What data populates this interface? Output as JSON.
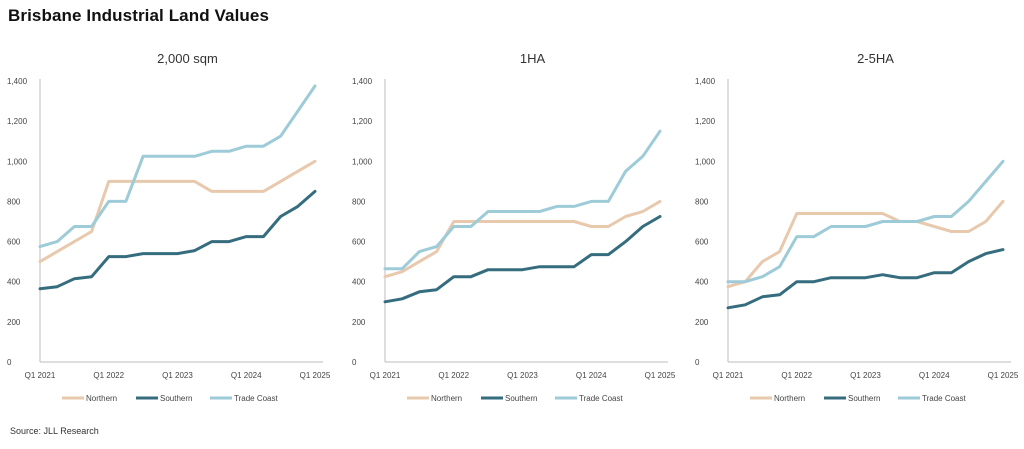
{
  "page": {
    "title": "Brisbane Industrial Land Values",
    "source": "Source: JLL Research"
  },
  "colors": {
    "Northern": "#e8c9ad",
    "Southern": "#356d7e",
    "Trade Coast": "#9dcbd8",
    "axis": "#bdbdbd"
  },
  "chart_data": [
    {
      "type": "line",
      "title": "2,000 sqm",
      "ylim": [
        0,
        1400
      ],
      "yticks": [
        0,
        200,
        400,
        600,
        800,
        1000,
        1200,
        1400
      ],
      "ytick_labels": [
        "0",
        "200",
        "400",
        "600",
        "800",
        "1,000",
        "1,200",
        "1,400"
      ],
      "x": [
        "Q1 2021",
        "Q2 2021",
        "Q3 2021",
        "Q4 2021",
        "Q1 2022",
        "Q2 2022",
        "Q3 2022",
        "Q4 2022",
        "Q1 2023",
        "Q2 2023",
        "Q3 2023",
        "Q4 2023",
        "Q1 2024",
        "Q2 2024",
        "Q3 2024",
        "Q4 2024",
        "Q1 2025"
      ],
      "xtick_labels": [
        "Q1 2021",
        "Q1 2022",
        "Q1 2023",
        "Q1 2024",
        "Q1 2025"
      ],
      "legend": "bottom",
      "series": [
        {
          "name": "Northern",
          "values": [
            500,
            550,
            600,
            650,
            900,
            900,
            900,
            900,
            900,
            900,
            850,
            850,
            850,
            850,
            900,
            950,
            1000
          ]
        },
        {
          "name": "Southern",
          "values": [
            365,
            375,
            415,
            425,
            525,
            525,
            540,
            540,
            540,
            555,
            600,
            600,
            625,
            625,
            725,
            775,
            850
          ]
        },
        {
          "name": "Trade Coast",
          "values": [
            575,
            600,
            675,
            675,
            800,
            800,
            1025,
            1025,
            1025,
            1025,
            1050,
            1050,
            1075,
            1075,
            1125,
            1250,
            1375
          ]
        }
      ]
    },
    {
      "type": "line",
      "title": "1HA",
      "ylim": [
        0,
        1400
      ],
      "yticks": [
        0,
        200,
        400,
        600,
        800,
        1000,
        1200,
        1400
      ],
      "ytick_labels": [
        "0",
        "200",
        "400",
        "600",
        "800",
        "1,000",
        "1,200",
        "1,400"
      ],
      "x": [
        "Q1 2021",
        "Q2 2021",
        "Q3 2021",
        "Q4 2021",
        "Q1 2022",
        "Q2 2022",
        "Q3 2022",
        "Q4 2022",
        "Q1 2023",
        "Q2 2023",
        "Q3 2023",
        "Q4 2023",
        "Q1 2024",
        "Q2 2024",
        "Q3 2024",
        "Q4 2024",
        "Q1 2025"
      ],
      "xtick_labels": [
        "Q1 2021",
        "Q1 2022",
        "Q1 2023",
        "Q1 2024",
        "Q1 2025"
      ],
      "legend": "bottom",
      "series": [
        {
          "name": "Northern",
          "values": [
            425,
            450,
            500,
            550,
            700,
            700,
            700,
            700,
            700,
            700,
            700,
            700,
            675,
            675,
            725,
            750,
            800
          ]
        },
        {
          "name": "Southern",
          "values": [
            300,
            315,
            350,
            360,
            425,
            425,
            460,
            460,
            460,
            475,
            475,
            475,
            535,
            535,
            600,
            675,
            725
          ]
        },
        {
          "name": "Trade Coast",
          "values": [
            465,
            465,
            550,
            575,
            675,
            675,
            750,
            750,
            750,
            750,
            775,
            775,
            800,
            800,
            950,
            1025,
            1150
          ]
        }
      ]
    },
    {
      "type": "line",
      "title": "2-5HA",
      "ylim": [
        0,
        1400
      ],
      "yticks": [
        0,
        200,
        400,
        600,
        800,
        1000,
        1200,
        1400
      ],
      "ytick_labels": [
        "0",
        "200",
        "400",
        "600",
        "800",
        "1,000",
        "1,200",
        "1,400"
      ],
      "x": [
        "Q1 2021",
        "Q2 2021",
        "Q3 2021",
        "Q4 2021",
        "Q1 2022",
        "Q2 2022",
        "Q3 2022",
        "Q4 2022",
        "Q1 2023",
        "Q2 2023",
        "Q3 2023",
        "Q4 2023",
        "Q1 2024",
        "Q2 2024",
        "Q3 2024",
        "Q4 2024",
        "Q1 2025"
      ],
      "xtick_labels": [
        "Q1 2021",
        "Q1 2022",
        "Q1 2023",
        "Q1 2024",
        "Q1 2025"
      ],
      "legend": "bottom",
      "series": [
        {
          "name": "Northern",
          "values": [
            375,
            400,
            500,
            550,
            740,
            740,
            740,
            740,
            740,
            740,
            700,
            700,
            675,
            650,
            650,
            700,
            800
          ]
        },
        {
          "name": "Southern",
          "values": [
            270,
            285,
            325,
            335,
            400,
            400,
            420,
            420,
            420,
            435,
            420,
            420,
            445,
            445,
            500,
            540,
            560
          ]
        },
        {
          "name": "Trade Coast",
          "values": [
            400,
            400,
            425,
            475,
            625,
            625,
            675,
            675,
            675,
            700,
            700,
            700,
            725,
            725,
            800,
            900,
            1000
          ]
        }
      ]
    }
  ]
}
